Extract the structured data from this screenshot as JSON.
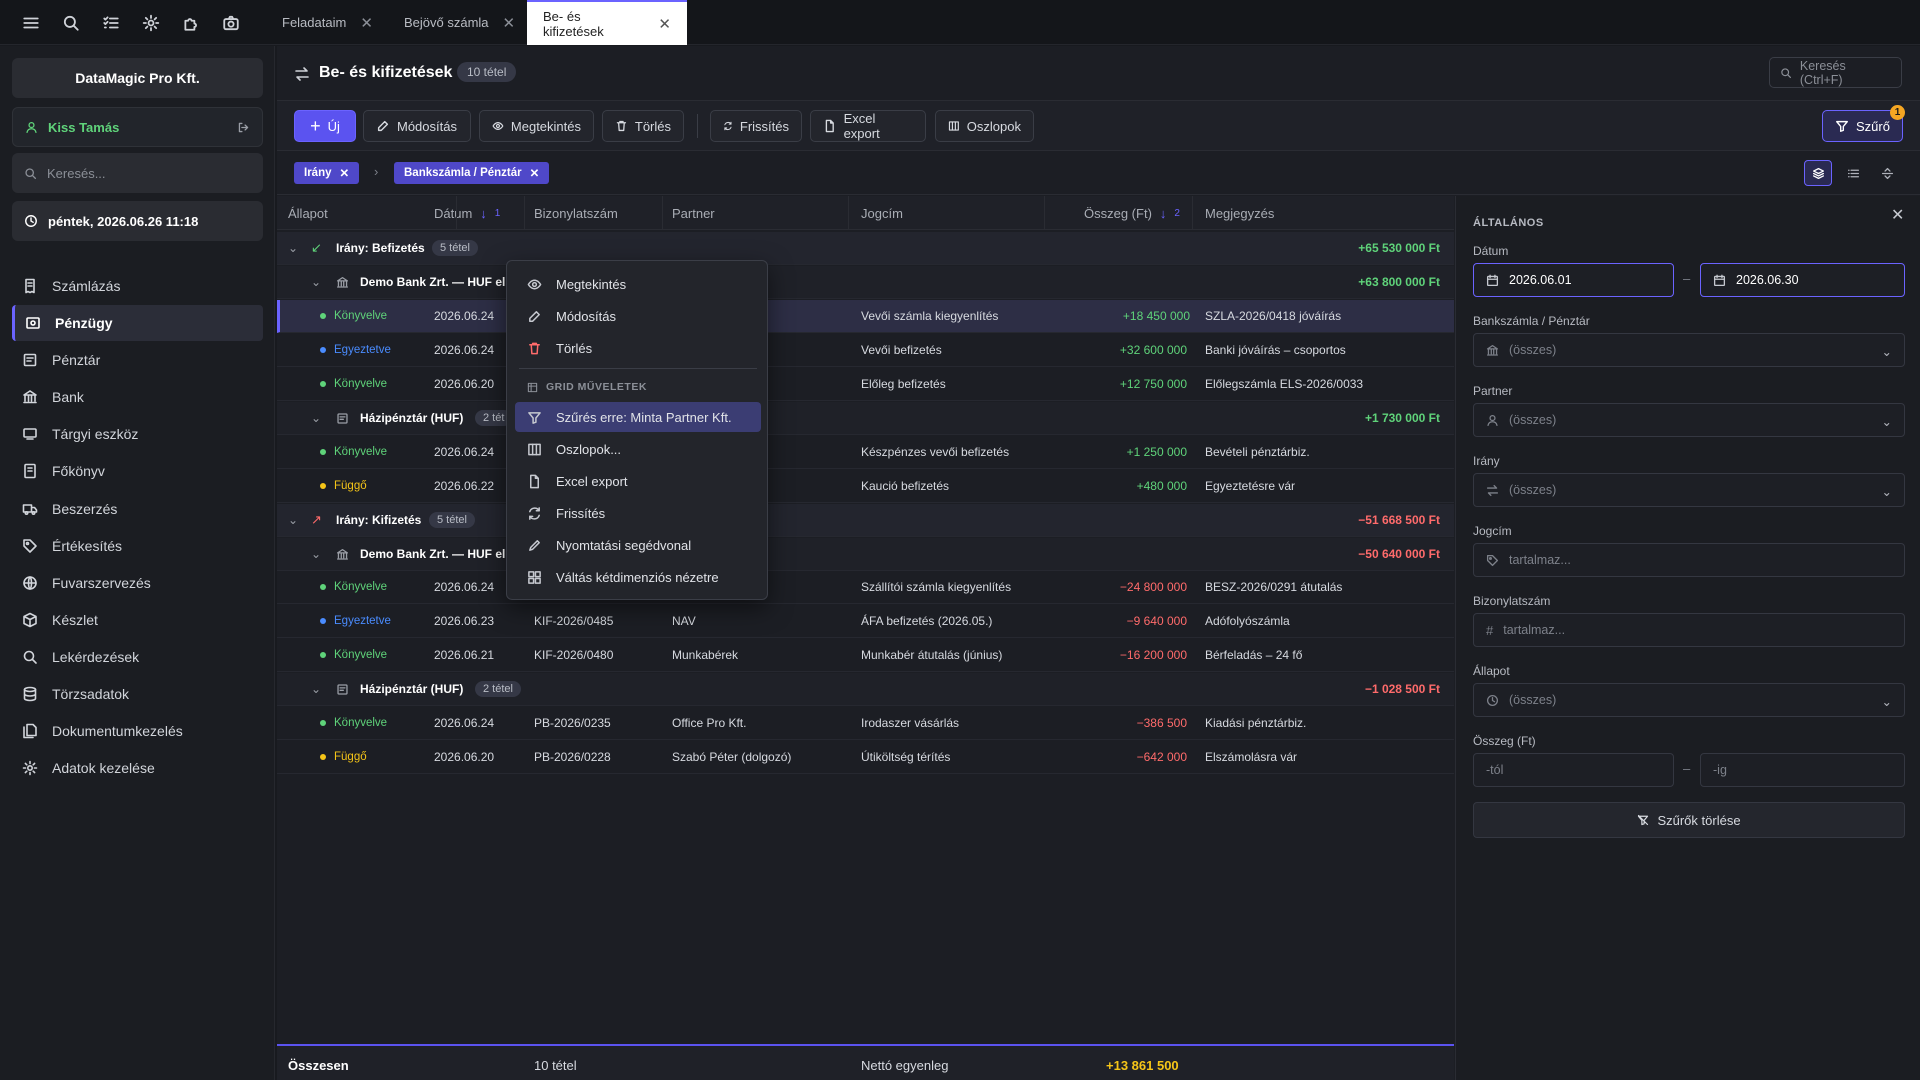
{
  "tabs": [
    {
      "label": "Feladataim"
    },
    {
      "label": "Bejövő számla"
    },
    {
      "label": "Be- és kifizetések"
    }
  ],
  "sidebar": {
    "company": "DataMagic Pro Kft.",
    "user": "Kiss Tamás",
    "search_placeholder": "Keresés...",
    "datetime": "péntek, 2026.06.26 11:18",
    "items": [
      {
        "label": "Számlázás",
        "icon": "invoice-icon"
      },
      {
        "label": "Pénzügy",
        "icon": "finance-icon"
      },
      {
        "label": "Pénztár",
        "icon": "cash-register-icon"
      },
      {
        "label": "Bank",
        "icon": "bank-icon"
      },
      {
        "label": "Tárgyi eszköz",
        "icon": "asset-icon"
      },
      {
        "label": "Főkönyv",
        "icon": "ledger-icon"
      },
      {
        "label": "Beszerzés",
        "icon": "truck-icon"
      },
      {
        "label": "Értékesítés",
        "icon": "tag-icon"
      },
      {
        "label": "Fuvarszervezés",
        "icon": "globe-icon"
      },
      {
        "label": "Készlet",
        "icon": "box-icon"
      },
      {
        "label": "Lekérdezések",
        "icon": "search-icon"
      },
      {
        "label": "Törzsadatok",
        "icon": "database-icon"
      },
      {
        "label": "Dokumentumkezelés",
        "icon": "documents-icon"
      },
      {
        "label": "Adatok kezelése",
        "icon": "gear-icon"
      }
    ]
  },
  "header": {
    "title": "Be- és kifizetések",
    "count": "10 tétel",
    "search": "Keresés (Ctrl+F)"
  },
  "toolbar": {
    "new": "Új",
    "edit": "Módosítás",
    "view": "Megtekintés",
    "delete": "Törlés",
    "refresh": "Frissítés",
    "excel": "Excel export",
    "columns": "Oszlopok",
    "filter": "Szűrő",
    "filter_badge": "1"
  },
  "group_chips": [
    {
      "label": "Irány"
    },
    {
      "label": "Bankszámla / Pénztár"
    }
  ],
  "columns": {
    "status": "Állapot",
    "date": "Dátum",
    "date_sort": "1",
    "doc": "Bizonylatszám",
    "partner": "Partner",
    "title": "Jogcím",
    "amount": "Összeg (Ft)",
    "amount_sort": "2",
    "note": "Megjegyzés"
  },
  "groups": {
    "in": {
      "label": "Irány: Befizetés",
      "count": "5 tétel",
      "total": "+65 530 000 Ft"
    },
    "in_bank": {
      "label": "Demo Bank Zrt. — HUF el",
      "total": "+63 800 000 Ft"
    },
    "in_cash": {
      "label": "Házipénztár (HUF)",
      "count": "2 tét",
      "total": "+1 730 000 Ft"
    },
    "out": {
      "label": "Irány: Kifizetés",
      "count": "5 tétel",
      "total": "−51 668 500 Ft"
    },
    "out_bank": {
      "label": "Demo Bank Zrt. — HUF el",
      "total": "−50 640 000 Ft"
    },
    "out_cash": {
      "label": "Házipénztár (HUF)",
      "count": "2 tétel",
      "total": "−1 028 500 Ft"
    }
  },
  "rows": [
    {
      "status": "Könyvelve",
      "date": "2026.06.24",
      "doc": "",
      "partner": "",
      "title": "Vevői számla kiegyenlítés",
      "amount": "+18 450 000",
      "note": "SZLA-2026/0418 jóváírás"
    },
    {
      "status": "Egyeztetve",
      "date": "2026.06.24",
      "doc": "",
      "partner": "",
      "title": "Vevői befizetés",
      "amount": "+32 600 000",
      "note": "Banki jóváírás – csoportos"
    },
    {
      "status": "Könyvelve",
      "date": "2026.06.20",
      "doc": "",
      "partner": "t.",
      "title": "Előleg befizetés",
      "amount": "+12 750 000",
      "note": "Előlegszámla ELS-2026/0033"
    },
    {
      "status": "Könyvelve",
      "date": "2026.06.24",
      "doc": "",
      "partner": "",
      "title": "Készpénzes vevői befizetés",
      "amount": "+1 250 000",
      "note": "Bevételi pénztárbiz."
    },
    {
      "status": "Függő",
      "date": "2026.06.22",
      "doc": "",
      "partner": "nagánsz.)",
      "title": "Kaució befizetés",
      "amount": "+480 000",
      "note": "Egyeztetésre vár"
    },
    {
      "status": "Könyvelve",
      "date": "2026.06.24",
      "doc": "",
      "partner": "t.",
      "title": "Szállítói számla kiegyenlítés",
      "amount": "−24 800 000",
      "note": "BESZ-2026/0291 átutalás"
    },
    {
      "status": "Egyeztetve",
      "date": "2026.06.23",
      "doc": "KIF-2026/0485",
      "partner": "NAV",
      "title": "ÁFA befizetés (2026.05.)",
      "amount": "−9 640 000",
      "note": "Adófolyószámla"
    },
    {
      "status": "Könyvelve",
      "date": "2026.06.21",
      "doc": "KIF-2026/0480",
      "partner": "Munkabérek",
      "title": "Munkabér átutalás (június)",
      "amount": "−16 200 000",
      "note": "Bérfeladás – 24 fő"
    },
    {
      "status": "Könyvelve",
      "date": "2026.06.24",
      "doc": "PB-2026/0235",
      "partner": "Office Pro Kft.",
      "title": "Irodaszer vásárlás",
      "amount": "−386 500",
      "note": "Kiadási pénztárbiz."
    },
    {
      "status": "Függő",
      "date": "2026.06.20",
      "doc": "PB-2026/0228",
      "partner": "Szabó Péter (dolgozó)",
      "title": "Útiköltség térítés",
      "amount": "−642 000",
      "note": "Elszámolásra vár"
    }
  ],
  "footer": {
    "label": "Összesen",
    "count": "10 tétel",
    "balance_label": "Nettó egyenleg",
    "balance": "+13 861 500"
  },
  "context_menu": {
    "view": "Megtekintés",
    "edit": "Módosítás",
    "delete": "Törlés",
    "section": "GRID MŰVELETEK",
    "filter": "Szűrés erre: Minta Partner Kft.",
    "columns": "Oszlopok...",
    "excel": "Excel export",
    "refresh": "Frissítés",
    "print": "Nyomtatási segédvonal",
    "pivot": "Váltás kétdimenziós nézetre"
  },
  "panel": {
    "section": "ÁLTALÁNOS",
    "date_label": "Dátum",
    "date_from": "2026.06.01",
    "date_to": "2026.06.30",
    "account_label": "Bankszámla / Pénztár",
    "account_value": "(összes)",
    "partner_label": "Partner",
    "partner_value": "(összes)",
    "direction_label": "Irány",
    "direction_value": "(összes)",
    "title_label": "Jogcím",
    "title_placeholder": "tartalmaz...",
    "doc_label": "Bizonylatszám",
    "doc_placeholder": "tartalmaz...",
    "status_label": "Állapot",
    "status_value": "(összes)",
    "amount_label": "Összeg (Ft)",
    "amount_from": "-tól",
    "amount_to": "-ig",
    "clear": "Szűrők törlése"
  },
  "colors": {
    "accent": "#6b63ff",
    "positive": "#5fd37a",
    "negative": "#ff6b6b",
    "posted": "#5fd37a",
    "reconciled": "#4a8cff",
    "pending": "#f5c518"
  }
}
